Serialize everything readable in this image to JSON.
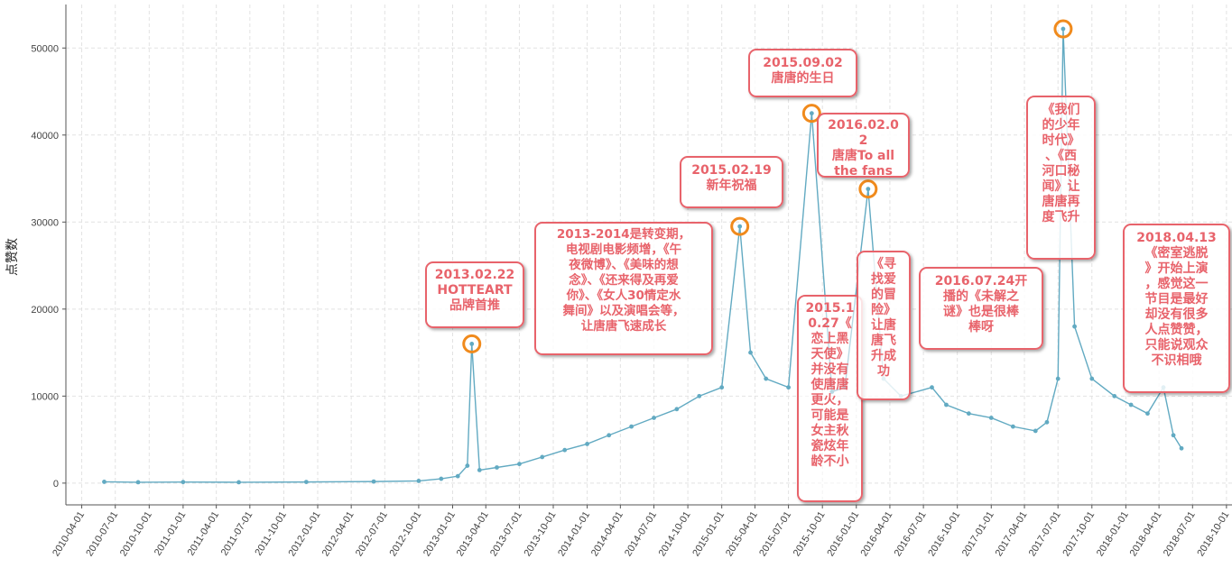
{
  "chart_data": {
    "type": "line",
    "xlabel": "",
    "ylabel": "点赞数",
    "ylim": [
      -2500,
      55000
    ],
    "yticks": [
      0,
      10000,
      20000,
      30000,
      40000,
      50000
    ],
    "x_tick_labels": [
      "2010-04-01",
      "2010-07-01",
      "2010-10-01",
      "2011-01-01",
      "2011-04-01",
      "2011-07-01",
      "2011-10-01",
      "2012-01-01",
      "2012-04-01",
      "2012-07-01",
      "2012-10-01",
      "2013-01-01",
      "2013-04-01",
      "2013-07-01",
      "2013-10-01",
      "2014-01-01",
      "2014-04-01",
      "2014-07-01",
      "2014-10-01",
      "2015-01-01",
      "2015-04-01",
      "2015-07-01",
      "2015-10-01",
      "2016-01-01",
      "2016-04-01",
      "2016-07-01",
      "2016-10-01",
      "2017-01-01",
      "2017-04-01",
      "2017-07-01",
      "2017-10-01",
      "2018-01-01",
      "2018-04-01",
      "2018-07-01",
      "2018-10-01"
    ],
    "grid": true,
    "line_color": "#62aac2",
    "highlight_color": "#f08a1c",
    "annotation_color": "#e8636b",
    "series": [
      {
        "x": [
          "2010-06-01",
          "2010-09-01",
          "2011-01-01",
          "2011-06-01",
          "2011-12-01",
          "2012-06-01",
          "2012-10-01",
          "2012-12-01",
          "2013-01-15",
          "2013-02-10",
          "2013-02-22",
          "2013-03-15",
          "2013-05-01",
          "2013-07-01",
          "2013-09-01",
          "2013-11-01",
          "2014-01-01",
          "2014-03-01",
          "2014-05-01",
          "2014-07-01",
          "2014-09-01",
          "2014-11-01",
          "2015-01-01",
          "2015-02-19",
          "2015-03-20",
          "2015-05-01",
          "2015-07-01",
          "2015-09-02",
          "2015-10-27",
          "2015-12-01",
          "2016-02-02",
          "2016-03-15",
          "2016-05-01",
          "2016-07-24",
          "2016-09-01",
          "2016-11-01",
          "2017-01-01",
          "2017-03-01",
          "2017-05-01",
          "2017-06-01",
          "2017-07-01",
          "2017-07-15",
          "2017-08-15",
          "2017-10-01",
          "2017-12-01",
          "2018-01-15",
          "2018-03-01",
          "2018-04-13",
          "2018-05-10",
          "2018-06-01"
        ],
        "y": [
          150,
          100,
          120,
          100,
          130,
          180,
          250,
          500,
          800,
          2000,
          16000,
          1500,
          1800,
          2200,
          3000,
          3800,
          4500,
          5500,
          6500,
          7500,
          8500,
          10000,
          11000,
          29500,
          15000,
          12000,
          11000,
          42500,
          10500,
          11000,
          33800,
          12000,
          10000,
          11000,
          9000,
          8000,
          7500,
          6500,
          6000,
          7000,
          12000,
          52200,
          18000,
          12000,
          10000,
          9000,
          8000,
          11000,
          5500,
          4000
        ]
      }
    ],
    "highlights": [
      {
        "date": "2013-02-22",
        "value": 16000
      },
      {
        "date": "2015-02-19",
        "value": 29500
      },
      {
        "date": "2015-09-02",
        "value": 42500
      },
      {
        "date": "2016-02-02",
        "value": 33800
      },
      {
        "date": "2017-07-15",
        "value": 52200
      }
    ],
    "annotations": [
      {
        "text": "2013.02.22\nHOTTEART\n品牌首推"
      },
      {
        "text": "2013-2014是转变期，\n电视剧电影频增，《午\n夜微博》、《美味的想\n念》、《还来得及再爱\n你》、《女人30情定水\n舞间》以及演唱会等，\n让唐唐飞速成长"
      },
      {
        "text": "2015.02.19\n新年祝福"
      },
      {
        "text": "2015.09.02\n唐唐的生日"
      },
      {
        "text": "2016.02.02\n唐唐To all\nthe fans"
      },
      {
        "text": "2015.1\n0.27《\n恋上黑\n天使》\n并没有\n使唐唐\n更火，\n可能是\n女主秋\n瓷炫年\n龄不小"
      },
      {
        "text": "《寻\n找爱\n的冒\n险》\n让唐\n唐飞\n升成\n功"
      },
      {
        "text": "2016.07.24开\n播的《未解之\n谜》也是很棒\n棒呀"
      },
      {
        "text": "《我们\n的少年\n时代》\n、《西\n河口秘\n闻》让\n唐唐再\n度飞升"
      },
      {
        "text": "2018.04.13\n《密室逃脱\n》开始上演\n，感觉这一\n节目是最好\n却没有很多\n人点赞赞，\n只能说观众\n不识相哦"
      }
    ]
  }
}
